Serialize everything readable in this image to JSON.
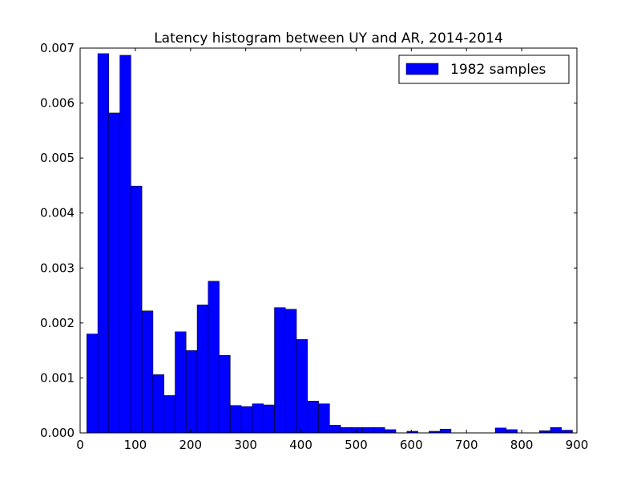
{
  "chart_data": {
    "type": "bar",
    "title": "Latency histogram between UY and AR, 2014-2014",
    "xlabel": "",
    "ylabel": "",
    "xlim": [
      0,
      900
    ],
    "ylim": [
      0,
      0.007
    ],
    "xticks": [
      0,
      100,
      200,
      300,
      400,
      500,
      600,
      700,
      800,
      900
    ],
    "yticks": [
      "0.000",
      "0.001",
      "0.002",
      "0.003",
      "0.004",
      "0.005",
      "0.006",
      "0.007"
    ],
    "grid": false,
    "legend": {
      "placement": "top-right",
      "entries": [
        "1982 samples"
      ]
    },
    "bar_color": "#0000ff",
    "bin_width": 20,
    "series": [
      {
        "name": "1982 samples",
        "bins": [
          {
            "start": 12,
            "value": 0.0018
          },
          {
            "start": 32,
            "value": 0.0069
          },
          {
            "start": 52,
            "value": 0.00582
          },
          {
            "start": 72,
            "value": 0.00687
          },
          {
            "start": 92,
            "value": 0.00449
          },
          {
            "start": 112,
            "value": 0.00222
          },
          {
            "start": 132,
            "value": 0.00106
          },
          {
            "start": 152,
            "value": 0.00068
          },
          {
            "start": 172,
            "value": 0.00184
          },
          {
            "start": 192,
            "value": 0.0015
          },
          {
            "start": 212,
            "value": 0.00233
          },
          {
            "start": 232,
            "value": 0.00276
          },
          {
            "start": 252,
            "value": 0.00141
          },
          {
            "start": 272,
            "value": 0.0005
          },
          {
            "start": 292,
            "value": 0.00048
          },
          {
            "start": 312,
            "value": 0.00053
          },
          {
            "start": 332,
            "value": 0.00051
          },
          {
            "start": 352,
            "value": 0.00228
          },
          {
            "start": 372,
            "value": 0.00225
          },
          {
            "start": 392,
            "value": 0.0017
          },
          {
            "start": 412,
            "value": 0.00058
          },
          {
            "start": 432,
            "value": 0.00053
          },
          {
            "start": 452,
            "value": 0.00014
          },
          {
            "start": 472,
            "value": 0.0001
          },
          {
            "start": 492,
            "value": 0.0001
          },
          {
            "start": 512,
            "value": 0.0001
          },
          {
            "start": 532,
            "value": 0.0001
          },
          {
            "start": 552,
            "value": 6e-05
          },
          {
            "start": 592,
            "value": 3e-05
          },
          {
            "start": 632,
            "value": 3e-05
          },
          {
            "start": 652,
            "value": 7e-05
          },
          {
            "start": 752,
            "value": 9e-05
          },
          {
            "start": 772,
            "value": 6e-05
          },
          {
            "start": 832,
            "value": 4e-05
          },
          {
            "start": 852,
            "value": 0.0001
          },
          {
            "start": 872,
            "value": 5e-05
          }
        ]
      }
    ]
  }
}
